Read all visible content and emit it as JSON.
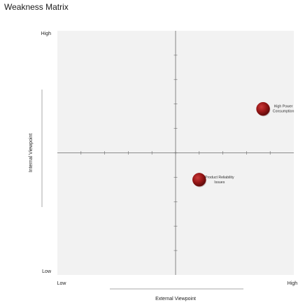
{
  "page": {
    "title": "Weakness Matrix"
  },
  "chart_data": {
    "type": "scatter",
    "title": "Weakness Matrix",
    "xlabel": "External Viewpoint",
    "ylabel": "Internal Viewpoint",
    "xlim": [
      0,
      10
    ],
    "ylim": [
      0,
      10
    ],
    "x_tick_labels": {
      "low": "Low",
      "high": "High"
    },
    "y_tick_labels": {
      "low": "Low",
      "high": "High"
    },
    "quadrant_lines": {
      "x": 5,
      "y": 5
    },
    "grid": false,
    "legend": "none",
    "marker_color": "#8e1414",
    "background_color": "#f2f2f2",
    "points": [
      {
        "label_lines": [
          "High Power",
          "Consumption"
        ],
        "x": 8.7,
        "y": 6.8
      },
      {
        "label_lines": [
          "Product Reliability",
          "Issues"
        ],
        "x": 6.0,
        "y": 3.9
      }
    ]
  }
}
